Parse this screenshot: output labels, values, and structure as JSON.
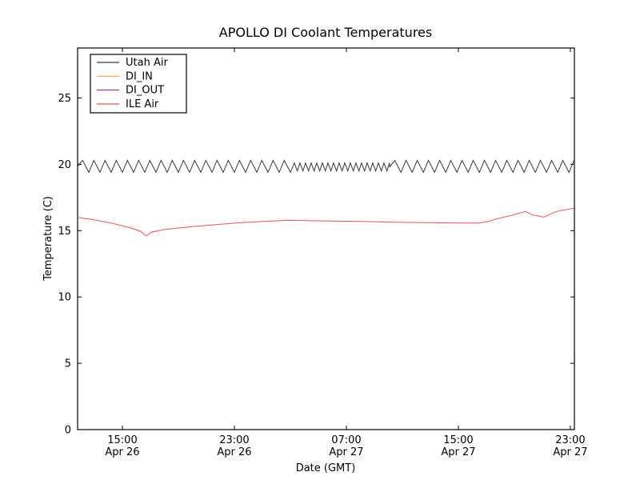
{
  "chart_data": {
    "type": "line",
    "title": "APOLLO DI Coolant Temperatures",
    "xlabel": "Date (GMT)",
    "ylabel": "Temperature (C)",
    "ylim": [
      0,
      28.77
    ],
    "yticks": [
      0,
      5,
      10,
      15,
      20,
      25
    ],
    "x_domain_hours": [
      0,
      35.49
    ],
    "xticks": [
      {
        "t": 3.2,
        "time": "15:00",
        "date": "Apr 26"
      },
      {
        "t": 11.2,
        "time": "23:00",
        "date": "Apr 26"
      },
      {
        "t": 19.2,
        "time": "07:00",
        "date": "Apr 27"
      },
      {
        "t": 27.2,
        "time": "15:00",
        "date": "Apr 27"
      },
      {
        "t": 35.2,
        "time": "23:00",
        "date": "Apr 27"
      }
    ],
    "grid": false,
    "legend": {
      "position": "upper left",
      "border": true
    },
    "axis_color": "#000000",
    "background": "#ffffff",
    "series": [
      {
        "name": "Utah Air",
        "color": "#3a3a3a",
        "style": "oscillation",
        "description": "sawtooth oscillation around 19.9 C; faster smaller cycles between ~04:00 and ~10:00 Apr 27",
        "segments": [
          {
            "t0": 0.0,
            "t1": 15.3,
            "period_h": 0.8,
            "min": 19.4,
            "max": 20.3
          },
          {
            "t0": 15.3,
            "t1": 22.3,
            "period_h": 0.4,
            "min": 19.5,
            "max": 20.1
          },
          {
            "t0": 22.3,
            "t1": 35.49,
            "period_h": 0.8,
            "min": 19.4,
            "max": 20.3
          }
        ]
      },
      {
        "name": "DI_IN",
        "color": "#ffa94d",
        "style": "points",
        "points": []
      },
      {
        "name": "DI_OUT",
        "color": "#8f3b8f",
        "style": "points",
        "points": []
      },
      {
        "name": "ILE Air",
        "color": "#f25050",
        "style": "points",
        "points": [
          [
            0.0,
            16.0
          ],
          [
            1.0,
            15.85
          ],
          [
            2.5,
            15.55
          ],
          [
            3.8,
            15.2
          ],
          [
            4.5,
            14.95
          ],
          [
            4.9,
            14.6
          ],
          [
            5.3,
            14.9
          ],
          [
            6.3,
            15.1
          ],
          [
            8.2,
            15.3
          ],
          [
            9.9,
            15.45
          ],
          [
            11.6,
            15.6
          ],
          [
            13.3,
            15.7
          ],
          [
            15.0,
            15.78
          ],
          [
            16.6,
            15.75
          ],
          [
            18.5,
            15.72
          ],
          [
            20.2,
            15.7
          ],
          [
            21.9,
            15.65
          ],
          [
            23.6,
            15.62
          ],
          [
            25.3,
            15.6
          ],
          [
            27.0,
            15.58
          ],
          [
            28.6,
            15.57
          ],
          [
            29.3,
            15.68
          ],
          [
            29.9,
            15.88
          ],
          [
            31.0,
            16.15
          ],
          [
            32.0,
            16.45
          ],
          [
            32.5,
            16.18
          ],
          [
            33.3,
            16.02
          ],
          [
            34.2,
            16.45
          ],
          [
            35.0,
            16.6
          ],
          [
            35.49,
            16.7
          ]
        ]
      }
    ]
  }
}
